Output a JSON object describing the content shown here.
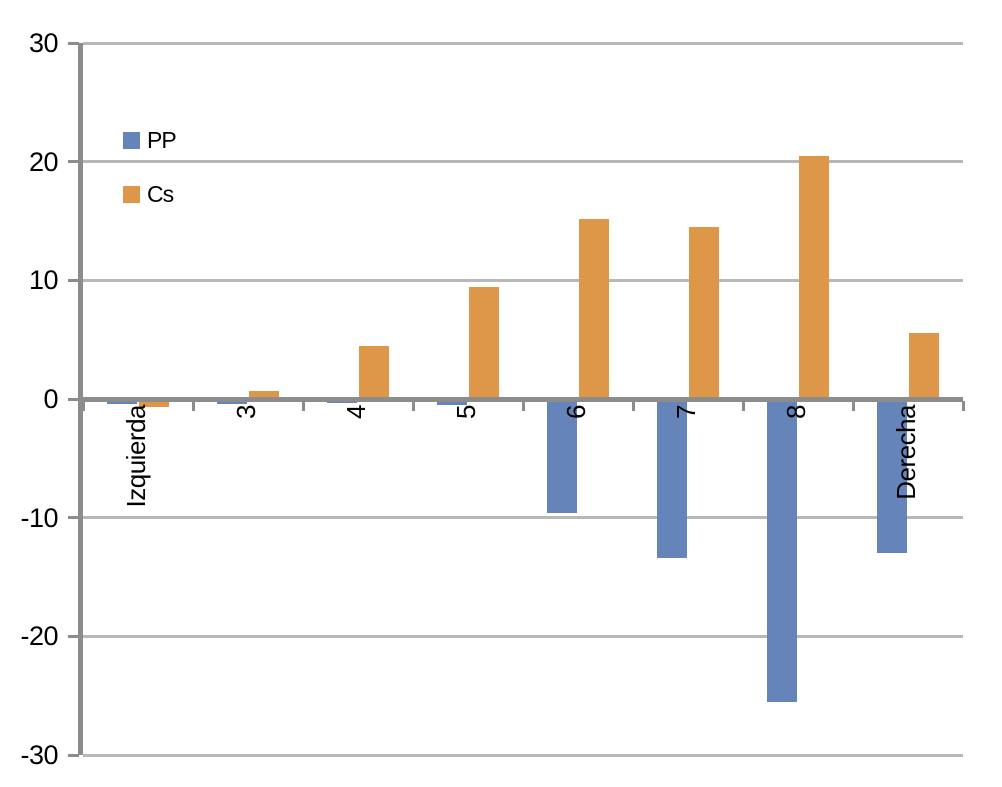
{
  "chart_data": {
    "type": "bar",
    "title": "",
    "xlabel": "",
    "ylabel": "",
    "categories": [
      "Izquierda",
      "3",
      "4",
      "5",
      "6",
      "7",
      "8",
      "Derecha"
    ],
    "series": [
      {
        "name": "PP",
        "color": "#6584BA",
        "values": [
          -0.4,
          -0.4,
          -0.3,
          -0.5,
          -9.6,
          -13.4,
          -25.5,
          -13.0
        ]
      },
      {
        "name": "Cs",
        "color": "#DE9648",
        "values": [
          -0.7,
          0.7,
          4.5,
          9.4,
          15.2,
          14.5,
          20.5,
          5.6
        ]
      }
    ],
    "ylim": [
      -30,
      30
    ],
    "y_ticks": [
      30,
      20,
      10,
      0,
      -10,
      -20,
      -30
    ],
    "grid": true,
    "legend_position": "inside-top-left",
    "x_tick_rotation_deg": 90,
    "colors": {
      "gridline": "#B8B8B8",
      "axis": "#8C8C8C",
      "text": "#000000",
      "background": "#FFFFFF"
    }
  }
}
